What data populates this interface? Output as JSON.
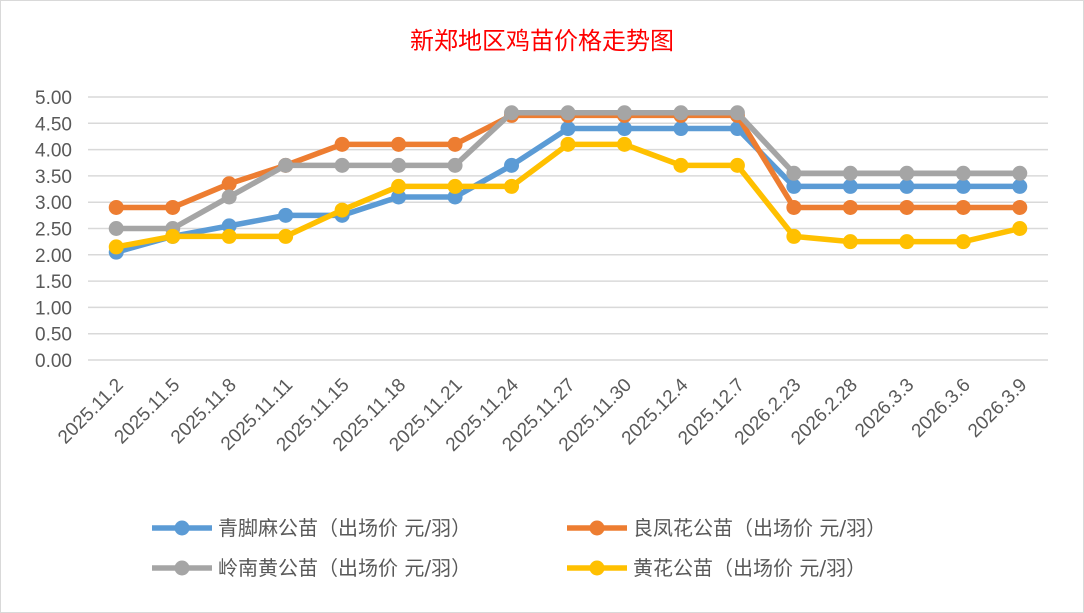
{
  "chart_data": {
    "type": "line",
    "title": "新郑地区鸡苗价格走势图",
    "xlabel": "",
    "ylabel": "",
    "ylim": [
      0,
      5
    ],
    "yticks": [
      "0.00",
      "0.50",
      "1.00",
      "1.50",
      "2.00",
      "2.50",
      "3.00",
      "3.50",
      "4.00",
      "4.50",
      "5.00"
    ],
    "grid": true,
    "legend_position": "bottom",
    "categories": [
      "2025.11.2",
      "2025.11.5",
      "2025.11.8",
      "2025.11.11",
      "2025.11.15",
      "2025.11.18",
      "2025.11.21",
      "2025.11.24",
      "2025.11.27",
      "2025.11.30",
      "2025.12.4",
      "2025.12.7",
      "2026.2.23",
      "2026.2.28",
      "2026.3.3",
      "2026.3.6",
      "2026.3.9"
    ],
    "series": [
      {
        "name": "青脚麻公苗（出场价 元/羽）",
        "color": "#5b9bd5",
        "values": [
          2.05,
          2.35,
          2.55,
          2.75,
          2.75,
          3.1,
          3.1,
          3.7,
          4.4,
          4.4,
          4.4,
          4.4,
          3.3,
          3.3,
          3.3,
          3.3,
          3.3
        ]
      },
      {
        "name": "良凤花公苗（出场价 元/羽）",
        "color": "#ed7d31",
        "values": [
          2.9,
          2.9,
          3.35,
          3.7,
          4.1,
          4.1,
          4.1,
          4.65,
          4.65,
          4.65,
          4.65,
          4.65,
          2.9,
          2.9,
          2.9,
          2.9,
          2.9
        ]
      },
      {
        "name": "岭南黄公苗（出场价 元/羽）",
        "color": "#a5a5a5",
        "values": [
          2.5,
          2.5,
          3.1,
          3.7,
          3.7,
          3.7,
          3.7,
          4.7,
          4.7,
          4.7,
          4.7,
          4.7,
          3.55,
          3.55,
          3.55,
          3.55,
          3.55
        ]
      },
      {
        "name": "黄花公苗（出场价 元/羽）",
        "color": "#ffc000",
        "values": [
          2.15,
          2.35,
          2.35,
          2.35,
          2.85,
          3.3,
          3.3,
          3.3,
          4.1,
          4.1,
          3.7,
          3.7,
          2.35,
          2.25,
          2.25,
          2.25,
          2.5
        ]
      }
    ]
  }
}
